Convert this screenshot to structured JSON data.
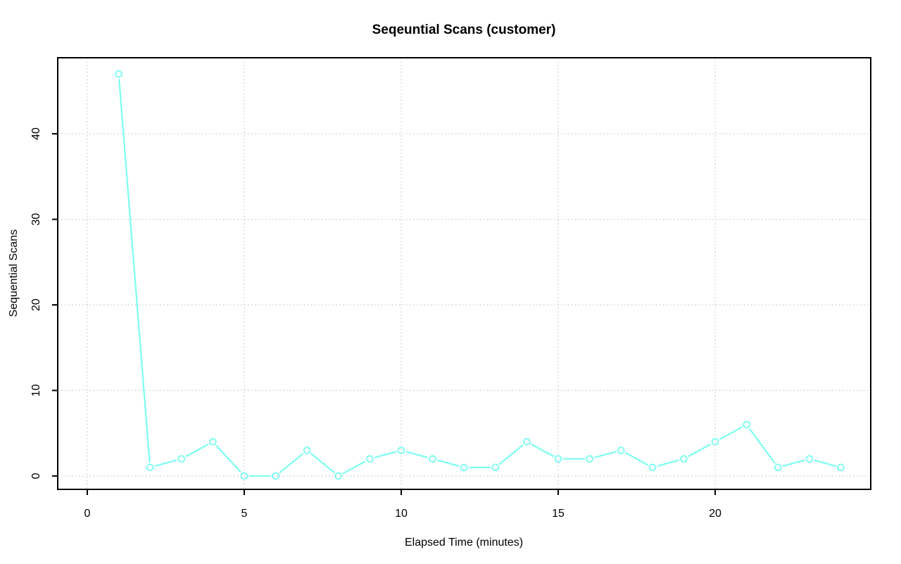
{
  "chart_data": {
    "type": "line",
    "title": "Seqeuntial Scans (customer)",
    "xlabel": "Elapsed Time (minutes)",
    "ylabel": "Sequential Scans",
    "x": [
      1,
      2,
      3,
      4,
      5,
      6,
      7,
      8,
      9,
      10,
      11,
      12,
      13,
      14,
      15,
      16,
      17,
      18,
      19,
      20,
      21,
      22,
      23,
      24
    ],
    "y": [
      47,
      1,
      2,
      4,
      0,
      0,
      3,
      0,
      2,
      3,
      2,
      1,
      1,
      4,
      2,
      2,
      3,
      1,
      2,
      4,
      6,
      1,
      2,
      1
    ],
    "x_ticks": [
      0,
      5,
      10,
      15,
      20
    ],
    "y_ticks": [
      0,
      10,
      20,
      30,
      40
    ],
    "xlim": [
      -1,
      26
    ],
    "ylim": [
      -1.5,
      48.5
    ],
    "grid": true,
    "legend": "none",
    "marker": "open-circle",
    "line_style": "segments-with-marker-gaps",
    "colors": {
      "series": "#7DFFF0",
      "grid": "#C9C9C9",
      "axis": "#000000",
      "text": "#000000",
      "background": "#FFFFFF"
    }
  }
}
